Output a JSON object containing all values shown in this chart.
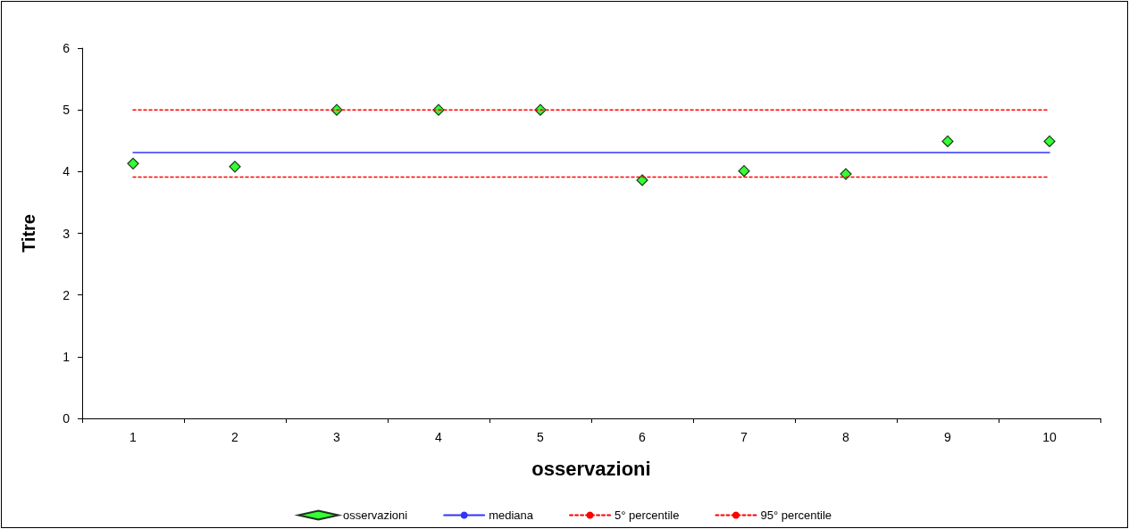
{
  "chart_data": {
    "type": "scatter",
    "xlabel": "osservazioni",
    "ylabel": "Titre",
    "categories": [
      "1",
      "2",
      "3",
      "4",
      "5",
      "6",
      "7",
      "8",
      "9",
      "10"
    ],
    "ylim": [
      0,
      6
    ],
    "yticks": [
      0,
      1,
      2,
      3,
      4,
      5,
      6
    ],
    "grid": false,
    "legend": "bottom",
    "series": [
      {
        "name": "osservazioni",
        "type": "scatter",
        "marker": "diamond",
        "color": "#00ff00",
        "values": [
          4.13,
          4.08,
          5.0,
          5.0,
          5.0,
          3.86,
          4.01,
          3.96,
          4.49,
          4.49
        ]
      },
      {
        "name": "mediana",
        "type": "line",
        "marker": "none",
        "line_style": "solid",
        "color": "#3333ff",
        "values": [
          4.31,
          4.31,
          4.31,
          4.31,
          4.31,
          4.31,
          4.31,
          4.31,
          4.31,
          4.31
        ]
      },
      {
        "name": "5° percentile",
        "type": "line",
        "marker": "none",
        "line_style": "dashed",
        "color": "#ff0000",
        "values": [
          3.91,
          3.91,
          3.91,
          3.91,
          3.91,
          3.91,
          3.91,
          3.91,
          3.91,
          3.91
        ]
      },
      {
        "name": "95° percentile",
        "type": "line",
        "marker": "none",
        "line_style": "dashed",
        "color": "#ff0000",
        "values": [
          5.0,
          5.0,
          5.0,
          5.0,
          5.0,
          5.0,
          5.0,
          5.0,
          5.0,
          5.0
        ]
      }
    ]
  }
}
